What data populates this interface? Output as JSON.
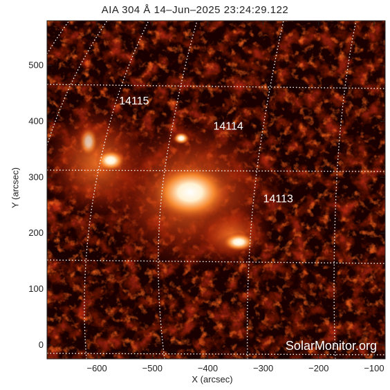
{
  "title": "AIA 304 Å 14–Jun–2025 23:24:29.122",
  "x_axis": {
    "label": "X (arcsec)",
    "range": [
      -690,
      -80
    ],
    "ticks": [
      -600,
      -500,
      -400,
      -300,
      -200,
      -100
    ],
    "tick_labels": [
      "−600",
      "−500",
      "−400",
      "−300",
      "−200",
      "−100"
    ]
  },
  "y_axis": {
    "label": "Y (arcsec)",
    "range": [
      -25,
      580
    ],
    "ticks": [
      0,
      100,
      200,
      300,
      400,
      500
    ],
    "tick_labels": [
      "0",
      "100",
      "200",
      "300",
      "400",
      "500"
    ]
  },
  "active_regions": [
    {
      "number": "14115",
      "x": -560,
      "y": 430
    },
    {
      "number": "14114",
      "x": -390,
      "y": 385
    },
    {
      "number": "14113",
      "x": -300,
      "y": 255
    }
  ],
  "watermark": "SolarMonitor.org",
  "colors": {
    "background": "#1a0000",
    "hot": "#ffffff",
    "warm": "#ff9a40",
    "mid": "#c03010",
    "grid": "#ffffff"
  }
}
